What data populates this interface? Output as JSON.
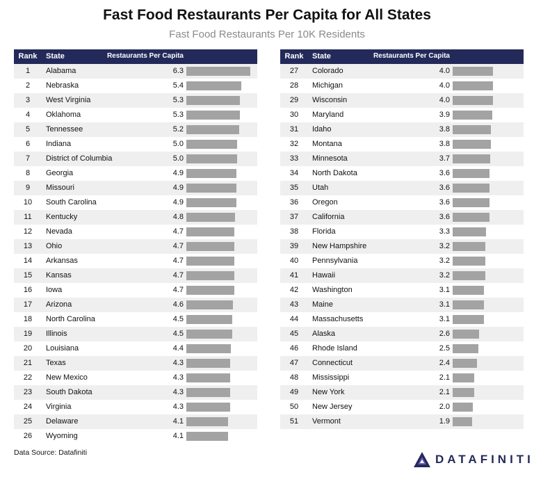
{
  "title": "Fast Food Restaurants Per Capita for All States",
  "subtitle": "Fast Food Restaurants Per 10K Residents",
  "table": {
    "headers": {
      "rank": "Rank",
      "state": "State",
      "value": "Restaurants Per Capita"
    }
  },
  "source": "Data Source: Datafiniti",
  "logo_text": "DATAFINITI",
  "colors": {
    "header": "#232a5a",
    "bar": "#a3a3a3",
    "stripe": "#efefef"
  },
  "chart_data": {
    "type": "bar",
    "orientation": "horizontal",
    "title": "Fast Food Restaurants Per Capita for All States",
    "subtitle": "Fast Food Restaurants Per 10K Residents",
    "value_label": "Restaurants Per Capita",
    "xlim": [
      0,
      6.3
    ],
    "rows": [
      {
        "rank": "1",
        "state": "Alabama",
        "value": 6.3,
        "label": "6.3"
      },
      {
        "rank": "2",
        "state": "Nebraska",
        "value": 5.4,
        "label": "5.4"
      },
      {
        "rank": "3",
        "state": "West Virginia",
        "value": 5.3,
        "label": "5.3"
      },
      {
        "rank": "4",
        "state": "Oklahoma",
        "value": 5.3,
        "label": "5.3"
      },
      {
        "rank": "5",
        "state": "Tennessee",
        "value": 5.2,
        "label": "5.2"
      },
      {
        "rank": "6",
        "state": "Indiana",
        "value": 5.0,
        "label": "5.0"
      },
      {
        "rank": "7",
        "state": "District of Columbia",
        "value": 5.0,
        "label": "5.0"
      },
      {
        "rank": "8",
        "state": "Georgia",
        "value": 4.9,
        "label": "4.9"
      },
      {
        "rank": "9",
        "state": "Missouri",
        "value": 4.9,
        "label": "4.9"
      },
      {
        "rank": "10",
        "state": "South Carolina",
        "value": 4.9,
        "label": "4.9"
      },
      {
        "rank": "11",
        "state": "Kentucky",
        "value": 4.8,
        "label": "4.8"
      },
      {
        "rank": "12",
        "state": "Nevada",
        "value": 4.7,
        "label": "4.7"
      },
      {
        "rank": "13",
        "state": "Ohio",
        "value": 4.7,
        "label": "4.7"
      },
      {
        "rank": "14",
        "state": "Arkansas",
        "value": 4.7,
        "label": "4.7"
      },
      {
        "rank": "15",
        "state": "Kansas",
        "value": 4.7,
        "label": "4.7"
      },
      {
        "rank": "16",
        "state": "Iowa",
        "value": 4.7,
        "label": "4.7"
      },
      {
        "rank": "17",
        "state": "Arizona",
        "value": 4.6,
        "label": "4.6"
      },
      {
        "rank": "18",
        "state": "North Carolina",
        "value": 4.5,
        "label": "4.5"
      },
      {
        "rank": "19",
        "state": "Illinois",
        "value": 4.5,
        "label": "4.5"
      },
      {
        "rank": "20",
        "state": "Louisiana",
        "value": 4.4,
        "label": "4.4"
      },
      {
        "rank": "21",
        "state": "Texas",
        "value": 4.3,
        "label": "4.3"
      },
      {
        "rank": "22",
        "state": "New Mexico",
        "value": 4.3,
        "label": "4.3"
      },
      {
        "rank": "23",
        "state": "South Dakota",
        "value": 4.3,
        "label": "4.3"
      },
      {
        "rank": "24",
        "state": "Virginia",
        "value": 4.3,
        "label": "4.3"
      },
      {
        "rank": "25",
        "state": "Delaware",
        "value": 4.1,
        "label": "4.1"
      },
      {
        "rank": "26",
        "state": "Wyoming",
        "value": 4.1,
        "label": "4.1"
      },
      {
        "rank": "27",
        "state": "Colorado",
        "value": 4.0,
        "label": "4.0"
      },
      {
        "rank": "28",
        "state": "Michigan",
        "value": 4.0,
        "label": "4.0"
      },
      {
        "rank": "29",
        "state": "Wisconsin",
        "value": 4.0,
        "label": "4.0"
      },
      {
        "rank": "30",
        "state": "Maryland",
        "value": 3.9,
        "label": "3.9"
      },
      {
        "rank": "31",
        "state": "Idaho",
        "value": 3.8,
        "label": "3.8"
      },
      {
        "rank": "32",
        "state": "Montana",
        "value": 3.8,
        "label": "3.8"
      },
      {
        "rank": "33",
        "state": "Minnesota",
        "value": 3.7,
        "label": "3.7"
      },
      {
        "rank": "34",
        "state": "North Dakota",
        "value": 3.6,
        "label": "3.6"
      },
      {
        "rank": "35",
        "state": "Utah",
        "value": 3.6,
        "label": "3.6"
      },
      {
        "rank": "36",
        "state": "Oregon",
        "value": 3.6,
        "label": "3.6"
      },
      {
        "rank": "37",
        "state": "California",
        "value": 3.6,
        "label": "3.6"
      },
      {
        "rank": "38",
        "state": "Florida",
        "value": 3.3,
        "label": "3.3"
      },
      {
        "rank": "39",
        "state": "New Hampshire",
        "value": 3.2,
        "label": "3.2"
      },
      {
        "rank": "40",
        "state": "Pennsylvania",
        "value": 3.2,
        "label": "3.2"
      },
      {
        "rank": "41",
        "state": "Hawaii",
        "value": 3.2,
        "label": "3.2"
      },
      {
        "rank": "42",
        "state": "Washington",
        "value": 3.1,
        "label": "3.1"
      },
      {
        "rank": "43",
        "state": "Maine",
        "value": 3.1,
        "label": "3.1"
      },
      {
        "rank": "44",
        "state": "Massachusetts",
        "value": 3.1,
        "label": "3.1"
      },
      {
        "rank": "45",
        "state": "Alaska",
        "value": 2.6,
        "label": "2.6"
      },
      {
        "rank": "46",
        "state": "Rhode Island",
        "value": 2.5,
        "label": "2.5"
      },
      {
        "rank": "47",
        "state": "Connecticut",
        "value": 2.4,
        "label": "2.4"
      },
      {
        "rank": "48",
        "state": "Mississippi",
        "value": 2.1,
        "label": "2.1"
      },
      {
        "rank": "49",
        "state": "New York",
        "value": 2.1,
        "label": "2.1"
      },
      {
        "rank": "50",
        "state": "New Jersey",
        "value": 2.0,
        "label": "2.0"
      },
      {
        "rank": "51",
        "state": "Vermont",
        "value": 1.9,
        "label": "1.9"
      }
    ]
  }
}
